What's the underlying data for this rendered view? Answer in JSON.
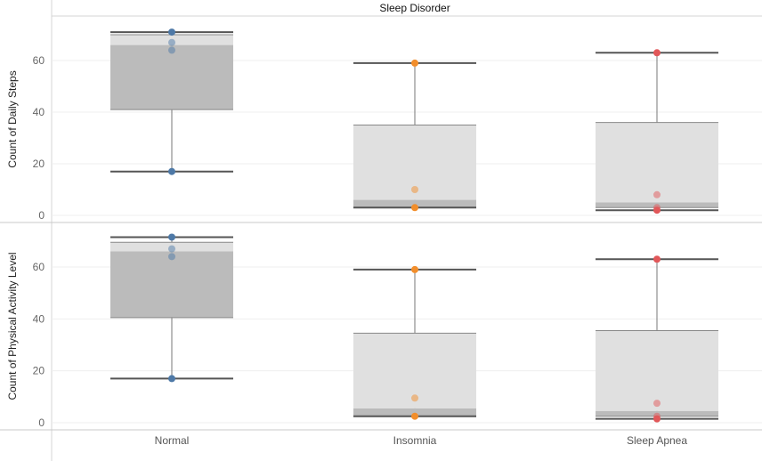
{
  "chart_data": {
    "type": "box",
    "column_header": "Sleep Disorder",
    "categories": [
      "Normal",
      "Insomnia",
      "Sleep Apnea"
    ],
    "category_colors": [
      "#4e79a7",
      "#f28e2b",
      "#e15759"
    ],
    "yticks": [
      0,
      20,
      40,
      60
    ],
    "ylim": [
      0,
      72
    ],
    "grid": true,
    "panels": [
      {
        "ylabel": "Count of Daily Steps",
        "boxes": [
          {
            "whisker_low": 17,
            "q1": 41,
            "median": 66,
            "q3": 70,
            "whisker_high": 71
          },
          {
            "whisker_low": 3,
            "q1": 3,
            "median": 6,
            "q3": 35,
            "whisker_high": 59
          },
          {
            "whisker_low": 2,
            "q1": 3,
            "median": 5,
            "q3": 36,
            "whisker_high": 63
          }
        ],
        "points": [
          {
            "category": "Normal",
            "values": [
              71,
              67,
              64,
              17
            ]
          },
          {
            "category": "Insomnia",
            "values": [
              59,
              10,
              3
            ]
          },
          {
            "category": "Sleep Apnea",
            "values": [
              63,
              8,
              3,
              2
            ]
          }
        ]
      },
      {
        "ylabel": "Count of Physical Activity Level",
        "boxes": [
          {
            "whisker_low": 17,
            "q1": 40.5,
            "median": 66,
            "q3": 69.5,
            "whisker_high": 71.5
          },
          {
            "whisker_low": 2.5,
            "q1": 2.5,
            "median": 5.5,
            "q3": 34.5,
            "whisker_high": 59
          },
          {
            "whisker_low": 1.5,
            "q1": 2.5,
            "median": 4.5,
            "q3": 35.5,
            "whisker_high": 63
          }
        ],
        "points": [
          {
            "category": "Normal",
            "values": [
              71.5,
              67,
              64,
              17
            ]
          },
          {
            "category": "Insomnia",
            "values": [
              59,
              9.5,
              2.5
            ]
          },
          {
            "category": "Sleep Apnea",
            "values": [
              63,
              7.5,
              2.5,
              1.5
            ]
          }
        ]
      }
    ]
  }
}
